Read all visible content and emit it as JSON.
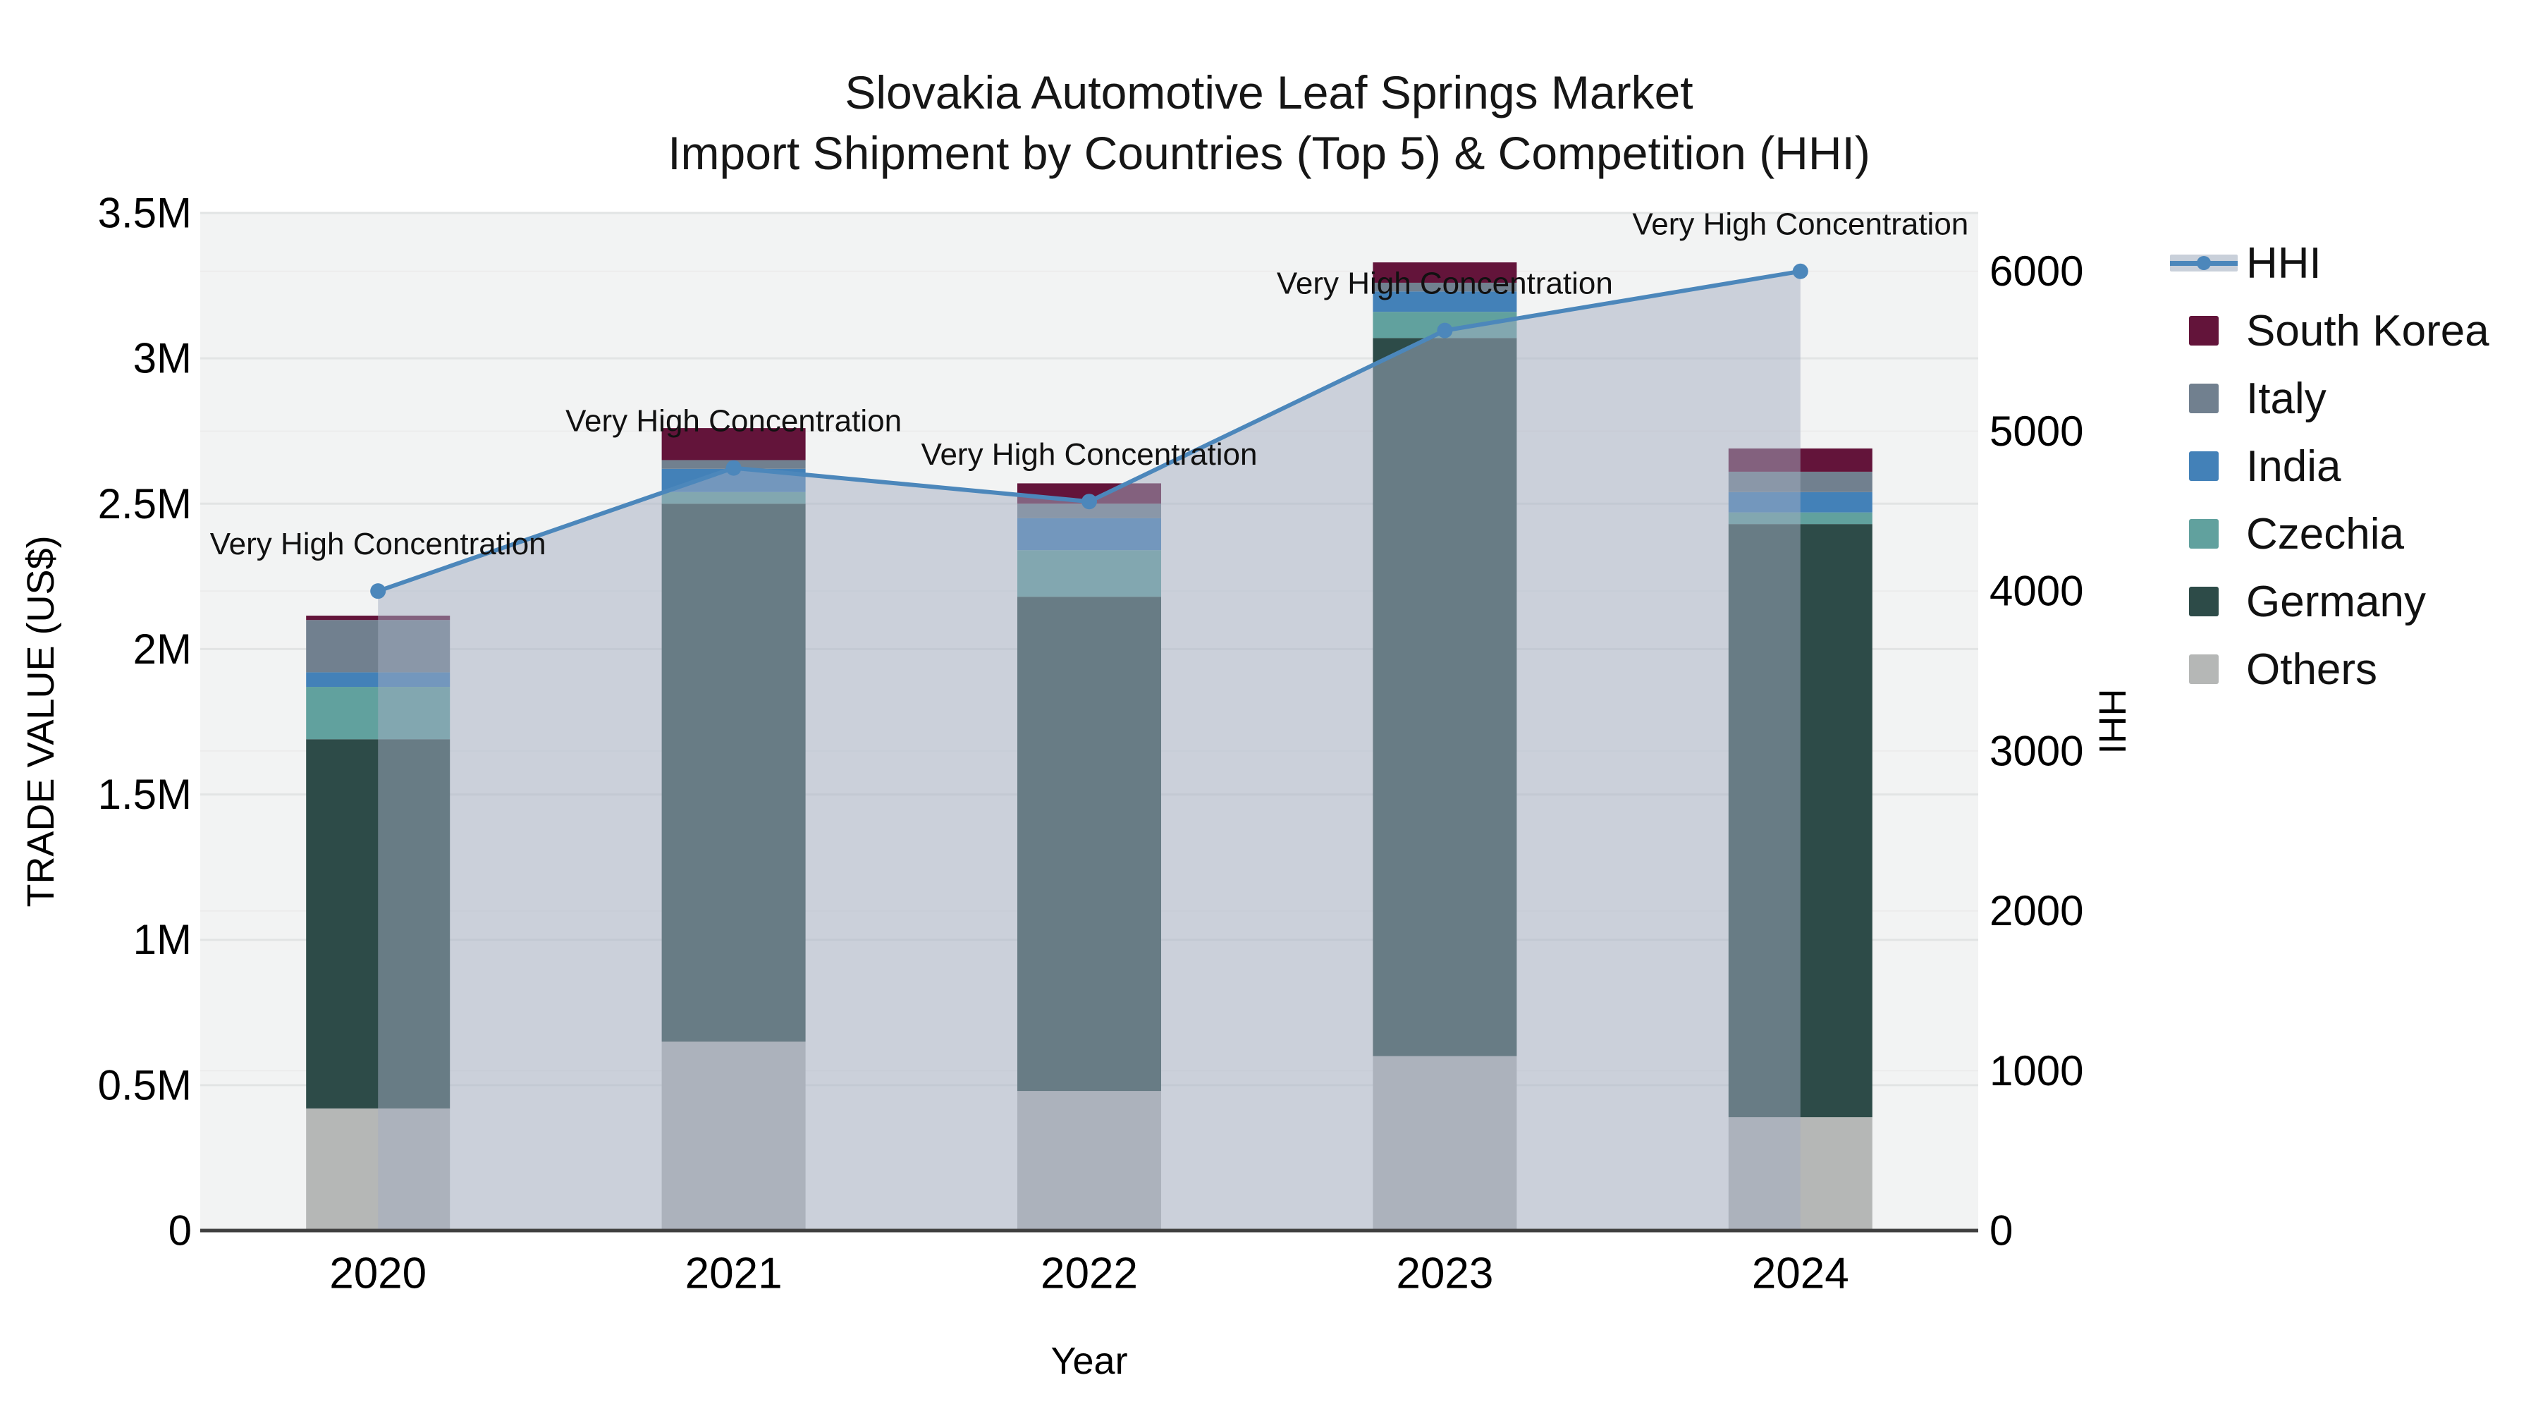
{
  "title": {
    "line1": "Slovakia Automotive Leaf Springs Market",
    "line2": "Import Shipment by Countries (Top 5) & Competition (HHI)"
  },
  "colors": {
    "figure_bg": "#ffffff",
    "plot_bg": "#f2f3f3",
    "grid_major": "#e2e4e4",
    "grid_minor": "#ececec",
    "axis_line": "#3f3f3f",
    "tick_text": "#000000",
    "annotation_text": "#111111",
    "hhi_line": "#4c87bb",
    "hhi_area": "rgba(163,174,193,0.5)",
    "south_korea": "#63143a",
    "italy": "#71808f",
    "india": "#4381b8",
    "czechia": "#61a19e",
    "germany": "#2d4b48",
    "others": "#b5b7b6"
  },
  "legend": {
    "items": [
      {
        "label": "HHI",
        "type": "line",
        "color": "#4c87bb",
        "band": "#c9d0da"
      },
      {
        "label": "South Korea",
        "type": "square",
        "color": "#63143a"
      },
      {
        "label": "Italy",
        "type": "square",
        "color": "#71808f"
      },
      {
        "label": "India",
        "type": "square",
        "color": "#4381b8"
      },
      {
        "label": "Czechia",
        "type": "square",
        "color": "#61a19e"
      },
      {
        "label": "Germany",
        "type": "square",
        "color": "#2d4b48"
      },
      {
        "label": "Others",
        "type": "square",
        "color": "#b5b7b6"
      }
    ]
  },
  "chart_data": {
    "type": "bar",
    "stacked": true,
    "title": "Slovakia Automotive Leaf Springs Market — Import Shipment by Countries (Top 5) & Competition (HHI)",
    "categories": [
      "2020",
      "2021",
      "2022",
      "2023",
      "2024"
    ],
    "series": [
      {
        "name": "Others",
        "color": "#b5b7b6",
        "values": [
          420000,
          650000,
          480000,
          600000,
          390000
        ]
      },
      {
        "name": "Germany",
        "color": "#2d4b48",
        "values": [
          1270000,
          1850000,
          1700000,
          2470000,
          2040000
        ]
      },
      {
        "name": "Czechia",
        "color": "#61a19e",
        "values": [
          180000,
          40000,
          160000,
          90000,
          40000
        ]
      },
      {
        "name": "India",
        "color": "#4381b8",
        "values": [
          50000,
          80000,
          110000,
          70000,
          70000
        ]
      },
      {
        "name": "Italy",
        "color": "#71808f",
        "values": [
          180000,
          30000,
          50000,
          30000,
          70000
        ]
      },
      {
        "name": "South Korea",
        "color": "#63143a",
        "values": [
          15000,
          110000,
          70000,
          70000,
          80000
        ]
      }
    ],
    "bar_totals": [
      2115000,
      2760000,
      2570000,
      3330000,
      2690000
    ],
    "line_series": {
      "name": "HHI",
      "color": "#4c87bb",
      "area_fill": "rgba(163,174,193,0.5)",
      "values": [
        4000,
        4770,
        4560,
        5630,
        6000
      ]
    },
    "annotations": [
      "Very High Concentration",
      "Very High Concentration",
      "Very High Concentration",
      "Very High Concentration",
      "Very High Concentration"
    ],
    "xlabel": "Year",
    "ylabel_left": "TRADE VALUE (US$)",
    "ylabel_right": "HHI",
    "y_left": {
      "max": 3500000,
      "ticks": [
        0,
        500000,
        1000000,
        1500000,
        2000000,
        2500000,
        3000000,
        3500000
      ],
      "tick_labels": [
        "0",
        "0.5M",
        "1M",
        "1.5M",
        "2M",
        "2.5M",
        "3M",
        "3.5M"
      ]
    },
    "y_right": {
      "max": 6365,
      "ticks": [
        0,
        1000,
        2000,
        3000,
        4000,
        5000,
        6000
      ],
      "tick_labels": [
        "0",
        "1000",
        "2000",
        "3000",
        "4000",
        "5000",
        "6000"
      ]
    },
    "grid": true,
    "legend_position": "right"
  }
}
